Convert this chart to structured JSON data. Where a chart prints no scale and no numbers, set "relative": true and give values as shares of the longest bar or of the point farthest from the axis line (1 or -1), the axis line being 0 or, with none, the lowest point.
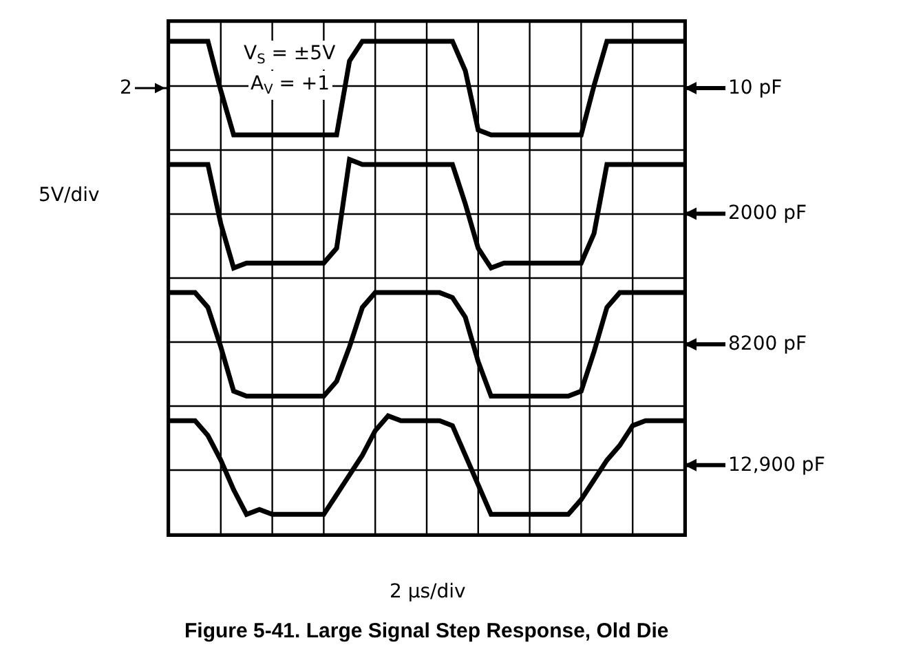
{
  "chart_data": {
    "type": "line",
    "relative": true,
    "title": "Figure 5-41. Large Signal Step Response, Old Die",
    "xlabel": "2 µs/div",
    "ylabel": "5V/div",
    "categories": [
      null,
      null,
      null,
      null,
      null,
      null,
      null,
      null,
      null,
      null,
      null,
      null,
      null,
      null,
      null,
      null,
      null,
      null,
      null,
      null,
      null,
      null,
      null,
      null,
      null,
      null,
      null,
      null,
      null,
      null,
      null,
      null,
      null,
      null,
      null,
      null,
      null,
      null,
      null,
      null,
      null
    ],
    "series": [
      {
        "name": "10 pF",
        "color": "#000000",
        "values": [
          1,
          1,
          1,
          1,
          0.9,
          0.81,
          0.81,
          0.81,
          0.81,
          0.81,
          0.81,
          0.81,
          0.81,
          0.81,
          0.96,
          1,
          1,
          1,
          1,
          1,
          1,
          1,
          1,
          0.94,
          0.82,
          0.81,
          0.81,
          0.81,
          0.81,
          0.81,
          0.81,
          0.81,
          0.81,
          0.91,
          1,
          1,
          1,
          1,
          1,
          1,
          1
        ]
      },
      {
        "name": "2000 pF",
        "color": "#000000",
        "values": [
          0.75,
          0.75,
          0.75,
          0.75,
          0.63,
          0.54,
          0.55,
          0.55,
          0.55,
          0.55,
          0.55,
          0.55,
          0.55,
          0.58,
          0.76,
          0.75,
          0.75,
          0.75,
          0.75,
          0.75,
          0.75,
          0.75,
          0.75,
          0.67,
          0.58,
          0.54,
          0.55,
          0.55,
          0.55,
          0.55,
          0.55,
          0.55,
          0.55,
          0.61,
          0.75,
          0.75,
          0.75,
          0.75,
          0.75,
          0.75,
          0.75
        ]
      },
      {
        "name": "8200 pF",
        "color": "#000000",
        "values": [
          0.49,
          0.49,
          0.49,
          0.46,
          0.38,
          0.29,
          0.28,
          0.28,
          0.28,
          0.28,
          0.28,
          0.28,
          0.28,
          0.31,
          0.38,
          0.46,
          0.49,
          0.49,
          0.49,
          0.49,
          0.49,
          0.49,
          0.48,
          0.44,
          0.35,
          0.28,
          0.28,
          0.28,
          0.28,
          0.28,
          0.28,
          0.28,
          0.29,
          0.37,
          0.46,
          0.49,
          0.49,
          0.49,
          0.49,
          0.49,
          0.49
        ]
      },
      {
        "name": "12,900 pF",
        "color": "#000000",
        "values": [
          0.23,
          0.23,
          0.23,
          0.2,
          0.15,
          0.09,
          0.04,
          0.05,
          0.04,
          0.04,
          0.04,
          0.04,
          0.04,
          0.08,
          0.12,
          0.16,
          0.21,
          0.24,
          0.23,
          0.23,
          0.23,
          0.23,
          0.22,
          0.16,
          0.1,
          0.04,
          0.04,
          0.04,
          0.04,
          0.04,
          0.04,
          0.04,
          0.07,
          0.11,
          0.15,
          0.18,
          0.22,
          0.23,
          0.23,
          0.23,
          0.23
        ]
      }
    ],
    "annotations": [
      "V$_{S}$ = ±5V",
      "A$_{V}$ = +1",
      "2"
    ],
    "grid": true,
    "legend": "right",
    "marker": "none",
    "line_style": "solid"
  }
}
